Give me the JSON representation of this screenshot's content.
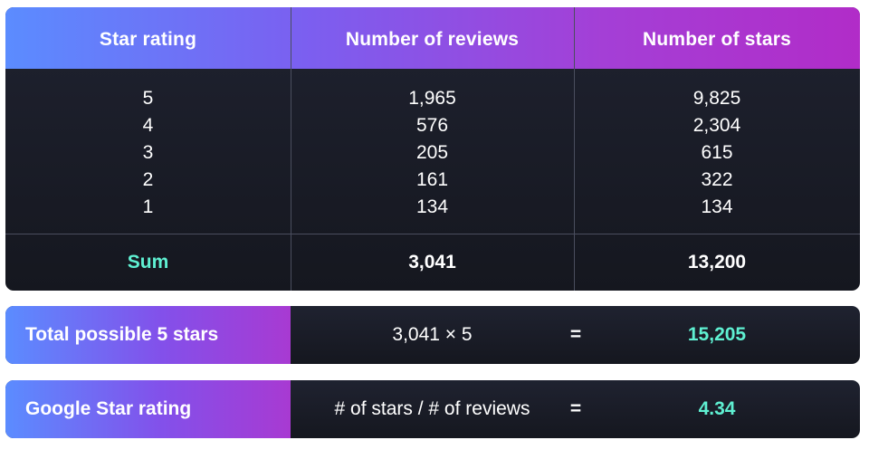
{
  "table": {
    "headers": [
      "Star rating",
      "Number of reviews",
      "Number of stars"
    ],
    "ratings": [
      "5",
      "4",
      "3",
      "2",
      "1"
    ],
    "reviews": [
      "1,965",
      "576",
      "205",
      "161",
      "134"
    ],
    "stars": [
      "9,825",
      "2,304",
      "615",
      "322",
      "134"
    ],
    "sum_label": "Sum",
    "sum_reviews": "3,041",
    "sum_stars": "13,200"
  },
  "total_possible": {
    "label": "Total possible 5 stars",
    "expression": "3,041 × 5",
    "equals": "=",
    "result": "15,205"
  },
  "google_rating": {
    "label": "Google Star rating",
    "expression": "# of stars / # of reviews",
    "equals": "=",
    "result": "4.34"
  },
  "colors": {
    "accent_teal": "#5ff0d2",
    "gradient_start": "#5b8cff",
    "gradient_end": "#b12cc8",
    "panel_bg": "#1a1c26"
  }
}
